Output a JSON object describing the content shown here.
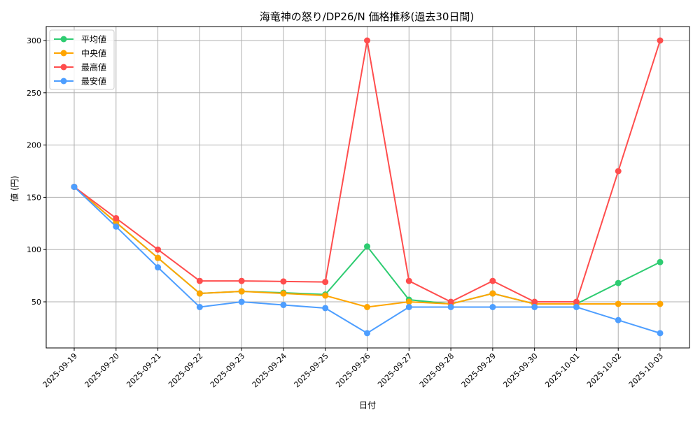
{
  "chart_data": {
    "type": "line",
    "title": "海竜神の怒り/DP26/N 価格推移(過去30日間)",
    "xlabel": "日付",
    "ylabel": "値 (円)",
    "ylim": [
      5,
      315
    ],
    "yticks": [
      50,
      100,
      150,
      200,
      250,
      300
    ],
    "grid": true,
    "legend_position": "top-left",
    "categories": [
      "2025-09-19",
      "2025-09-20",
      "2025-09-21",
      "2025-09-22",
      "2025-09-23",
      "2025-09-24",
      "2025-09-25",
      "2025-09-26",
      "2025-09-27",
      "2025-09-28",
      "2025-09-29",
      "2025-09-30",
      "2025-10-01",
      "2025-10-02",
      "2025-10-03"
    ],
    "series": [
      {
        "name": "平均値",
        "color": "#2ecc71",
        "values": [
          160,
          126,
          92,
          58,
          60,
          58.7,
          57,
          103,
          52,
          48,
          58,
          48,
          48,
          68,
          88
        ]
      },
      {
        "name": "中央値",
        "color": "#ffa500",
        "values": [
          160,
          126,
          92,
          58,
          60,
          58,
          56,
          45,
          50,
          48,
          58,
          48,
          48,
          48,
          48
        ]
      },
      {
        "name": "最高値",
        "color": "#ff4d4d",
        "values": [
          160,
          130,
          100,
          70,
          70,
          69.5,
          69,
          300,
          70,
          50,
          70,
          50,
          50,
          175,
          300
        ]
      },
      {
        "name": "最安値",
        "color": "#4d9eff",
        "values": [
          160,
          122,
          83,
          45,
          50,
          47,
          44,
          20,
          45,
          45,
          45,
          45,
          45,
          32.5,
          20
        ]
      }
    ]
  }
}
